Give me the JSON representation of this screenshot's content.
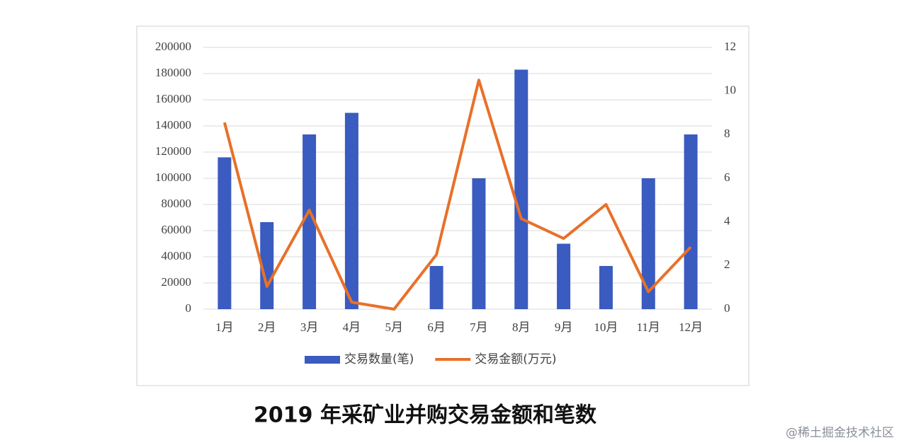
{
  "chart_data": {
    "type": "bar-line",
    "title": "2019 年采矿业并购交易金额和笔数",
    "watermark": "@稀土掘金技术社区",
    "categories": [
      "1月",
      "2月",
      "3月",
      "4月",
      "5月",
      "6月",
      "7月",
      "8月",
      "9月",
      "10月",
      "11月",
      "12月"
    ],
    "series": [
      {
        "name": "交易数量(笔)",
        "type": "bar",
        "color": "#3a5bbf",
        "values": [
          116000,
          66500,
          133500,
          150000,
          0,
          33000,
          100000,
          183000,
          50000,
          33000,
          100000,
          133500
        ]
      },
      {
        "name": "交易金额(万元)",
        "type": "line",
        "axis": "y2",
        "color": "#e8702a",
        "values": [
          8.56,
          1.04,
          4.54,
          0.32,
          0,
          2.5,
          10.5,
          4.15,
          3.24,
          4.8,
          0.8,
          2.85
        ]
      }
    ],
    "ylim": [
      0,
      200000
    ],
    "yticks": [
      0,
      20000,
      40000,
      60000,
      80000,
      100000,
      120000,
      140000,
      160000,
      180000,
      200000
    ],
    "y2lim": [
      0,
      12
    ],
    "y2ticks": [
      0,
      2,
      4,
      6,
      8,
      10,
      12
    ],
    "grid": true,
    "legend": "bottom"
  }
}
